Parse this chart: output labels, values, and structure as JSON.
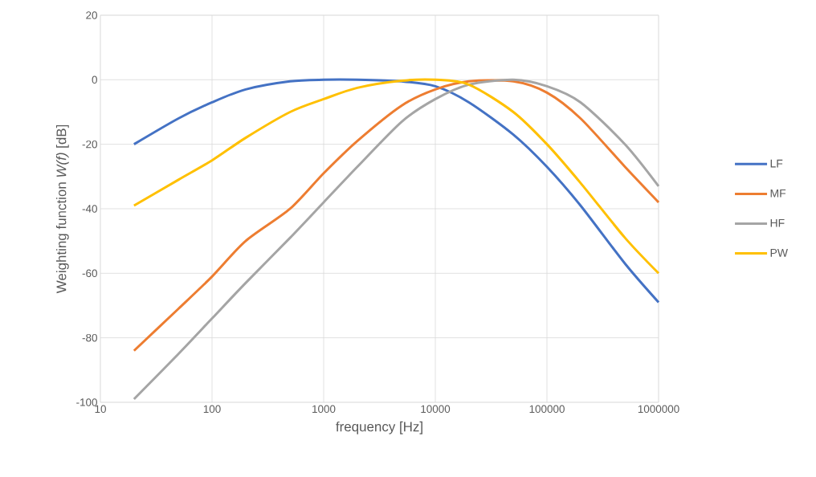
{
  "chart_data": {
    "type": "line",
    "xlabel": "frequency [Hz]",
    "ylabel": "Weighting function *W(f)* [dB]",
    "log": "x",
    "grid": true,
    "legend": "right",
    "marker": "none",
    "line_style": "solid",
    "x": [
      20,
      50,
      100,
      200,
      500,
      1000,
      2000,
      5000,
      10000,
      20000,
      50000,
      100000,
      200000,
      500000,
      1000000
    ],
    "xlim": [
      10,
      1000000
    ],
    "xticks": [
      10,
      100,
      1000,
      10000,
      100000,
      1000000
    ],
    "ylim": [
      -100,
      20
    ],
    "yticks": [
      -100,
      -80,
      -60,
      -40,
      -20,
      0,
      20
    ],
    "series": [
      {
        "name": "LF",
        "color": "#4472c4",
        "values": [
          -20,
          -12,
          -7,
          -3,
          -0.5,
          0,
          0,
          -0.5,
          -2,
          -7,
          -17,
          -27,
          -39,
          -57,
          -69
        ]
      },
      {
        "name": "MF",
        "color": "#ed7d31",
        "values": [
          -84,
          -71,
          -61,
          -50,
          -40,
          -29,
          -19,
          -8,
          -3,
          -0.5,
          -0.5,
          -4,
          -12,
          -27,
          -38
        ]
      },
      {
        "name": "HF",
        "color": "#a5a5a5",
        "values": [
          -99,
          -85,
          -74,
          -63,
          -49,
          -38,
          -27,
          -13,
          -6,
          -1.5,
          0,
          -2,
          -7,
          -20,
          -33
        ]
      },
      {
        "name": "PW",
        "color": "#ffc000",
        "values": [
          -39,
          -31,
          -25,
          -18,
          -10,
          -6,
          -2.5,
          -0.3,
          0,
          -1.5,
          -10,
          -20,
          -32,
          -49,
          -60
        ]
      }
    ]
  }
}
